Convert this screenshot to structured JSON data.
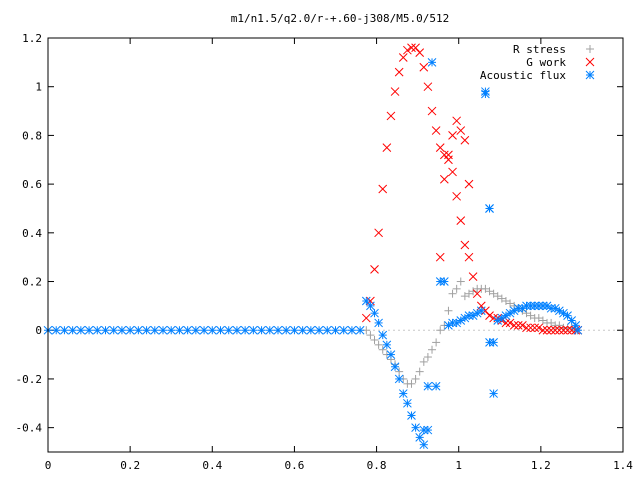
{
  "chart_data": {
    "type": "scatter",
    "title": "m1/n1.5/q2.0/r-+.60-j308/M5.0/512",
    "xlabel": "",
    "ylabel": "",
    "xlim": [
      0,
      1.4
    ],
    "ylim": [
      -0.5,
      1.2
    ],
    "xticks": [
      0,
      0.2,
      0.4,
      0.6,
      0.8,
      1,
      1.2,
      1.4
    ],
    "xtick_labels": [
      "0",
      "0.2",
      "0.4",
      "0.6",
      "0.8",
      "1",
      "1.2",
      "1.4"
    ],
    "yticks": [
      -0.4,
      -0.2,
      0,
      0.2,
      0.4,
      0.6,
      0.8,
      1,
      1.2
    ],
    "ytick_labels": [
      "-0.4",
      "-0.2",
      "0",
      "0.2",
      "0.4",
      "0.6",
      "0.8",
      "1",
      "1.2"
    ],
    "grid": false,
    "legend_position": "top-right",
    "series": [
      {
        "name": "R stress",
        "marker": "plus",
        "color": "#a0a0a0",
        "x": [
          0.775,
          0.785,
          0.795,
          0.805,
          0.815,
          0.825,
          0.835,
          0.845,
          0.855,
          0.865,
          0.875,
          0.885,
          0.895,
          0.905,
          0.915,
          0.925,
          0.935,
          0.945,
          0.955,
          0.965,
          0.975,
          0.985,
          0.995,
          1.005,
          1.015,
          1.025,
          1.035,
          1.045,
          1.055,
          1.065,
          1.075,
          1.085,
          1.095,
          1.105,
          1.115,
          1.125,
          1.135,
          1.145,
          1.155,
          1.165,
          1.175,
          1.185,
          1.195,
          1.205,
          1.215,
          1.225,
          1.235,
          1.245,
          1.255,
          1.265,
          1.275,
          1.285,
          1.29
        ],
        "y": [
          0.0,
          -0.02,
          -0.04,
          -0.06,
          -0.08,
          -0.1,
          -0.12,
          -0.14,
          -0.17,
          -0.2,
          -0.22,
          -0.22,
          -0.2,
          -0.17,
          -0.13,
          -0.11,
          -0.08,
          -0.05,
          0.0,
          0.02,
          0.08,
          0.15,
          0.17,
          0.2,
          0.14,
          0.15,
          0.16,
          0.17,
          0.17,
          0.17,
          0.16,
          0.15,
          0.14,
          0.13,
          0.12,
          0.11,
          0.1,
          0.09,
          0.08,
          0.07,
          0.06,
          0.05,
          0.05,
          0.04,
          0.03,
          0.03,
          0.02,
          0.02,
          0.01,
          0.01,
          0.01,
          0.0,
          0.0
        ]
      },
      {
        "name": "G work",
        "marker": "cross",
        "color": "#ff0000",
        "x": [
          0.775,
          0.785,
          0.795,
          0.805,
          0.815,
          0.825,
          0.835,
          0.845,
          0.855,
          0.865,
          0.875,
          0.885,
          0.895,
          0.905,
          0.915,
          0.925,
          0.935,
          0.945,
          0.955,
          0.965,
          0.975,
          0.985,
          0.995,
          1.005,
          1.015,
          1.025,
          1.035,
          1.045,
          1.055,
          1.065,
          1.075,
          1.085,
          1.095,
          1.105,
          1.115,
          1.125,
          1.135,
          1.145,
          1.155,
          1.165,
          1.175,
          1.185,
          1.195,
          1.205,
          1.215,
          1.225,
          1.235,
          1.245,
          1.255,
          1.265,
          1.275,
          1.285,
          1.29,
          0.955,
          0.965,
          0.975,
          0.985,
          0.995,
          1.005,
          1.015,
          1.025
        ],
        "y": [
          0.05,
          0.12,
          0.25,
          0.4,
          0.58,
          0.75,
          0.88,
          0.98,
          1.06,
          1.12,
          1.15,
          1.16,
          1.16,
          1.14,
          1.08,
          1.0,
          0.9,
          0.82,
          0.75,
          0.72,
          0.7,
          0.65,
          0.55,
          0.45,
          0.35,
          0.3,
          0.22,
          0.15,
          0.1,
          0.08,
          0.06,
          0.05,
          0.05,
          0.04,
          0.03,
          0.03,
          0.02,
          0.02,
          0.02,
          0.01,
          0.01,
          0.01,
          0.01,
          0.0,
          0.0,
          0.0,
          0.0,
          0.0,
          0.0,
          0.0,
          0.0,
          0.0,
          0.0,
          0.3,
          0.62,
          0.72,
          0.8,
          0.86,
          0.82,
          0.78,
          0.6
        ]
      },
      {
        "name": "Acoustic flux",
        "marker": "star",
        "color": "#0080ff",
        "x": [
          0.0,
          0.02,
          0.04,
          0.06,
          0.08,
          0.1,
          0.12,
          0.14,
          0.16,
          0.18,
          0.2,
          0.22,
          0.24,
          0.26,
          0.28,
          0.3,
          0.32,
          0.34,
          0.36,
          0.38,
          0.4,
          0.42,
          0.44,
          0.46,
          0.48,
          0.5,
          0.52,
          0.54,
          0.56,
          0.58,
          0.6,
          0.62,
          0.64,
          0.66,
          0.68,
          0.7,
          0.72,
          0.74,
          0.76,
          0.775,
          0.785,
          0.795,
          0.805,
          0.815,
          0.825,
          0.835,
          0.845,
          0.855,
          0.865,
          0.875,
          0.885,
          0.895,
          0.905,
          0.915,
          0.925,
          0.935,
          0.945,
          0.955,
          0.965,
          0.975,
          0.985,
          0.995,
          1.005,
          1.015,
          1.025,
          1.035,
          1.045,
          1.055,
          1.065,
          1.075,
          1.085,
          1.095,
          1.105,
          1.115,
          1.125,
          1.135,
          1.145,
          1.155,
          1.165,
          1.175,
          1.185,
          1.195,
          1.205,
          1.215,
          1.225,
          1.235,
          1.245,
          1.255,
          1.265,
          1.275,
          1.285,
          1.29,
          0.915,
          0.925,
          1.065,
          1.075,
          1.085,
          1.075
        ],
        "y": [
          0.0,
          0.0,
          0.0,
          0.0,
          0.0,
          0.0,
          0.0,
          0.0,
          0.0,
          0.0,
          0.0,
          0.0,
          0.0,
          0.0,
          0.0,
          0.0,
          0.0,
          0.0,
          0.0,
          0.0,
          0.0,
          0.0,
          0.0,
          0.0,
          0.0,
          0.0,
          0.0,
          0.0,
          0.0,
          0.0,
          0.0,
          0.0,
          0.0,
          0.0,
          0.0,
          0.0,
          0.0,
          0.0,
          0.0,
          0.12,
          0.1,
          0.07,
          0.03,
          -0.02,
          -0.06,
          -0.1,
          -0.15,
          -0.2,
          -0.26,
          -0.3,
          -0.35,
          -0.4,
          -0.44,
          -0.47,
          -0.41,
          1.1,
          -0.23,
          0.2,
          0.2,
          0.02,
          0.03,
          0.03,
          0.04,
          0.05,
          0.06,
          0.06,
          0.07,
          0.08,
          0.97,
          0.5,
          -0.05,
          0.04,
          0.05,
          0.06,
          0.07,
          0.08,
          0.09,
          0.09,
          0.1,
          0.1,
          0.1,
          0.1,
          0.1,
          0.1,
          0.09,
          0.09,
          0.08,
          0.07,
          0.06,
          0.04,
          0.02,
          0.0,
          -0.41,
          -0.23,
          0.98,
          0.5,
          -0.26,
          -0.05
        ]
      }
    ]
  }
}
